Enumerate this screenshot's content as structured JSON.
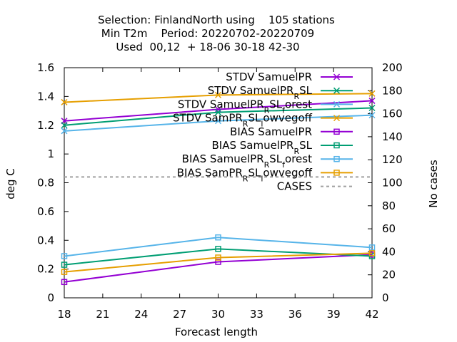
{
  "title_lines": [
    "Selection: FinlandNorth using    105 stations",
    "Min T2m    Period: 20220702-20220709",
    "Used  00,12  + 18-06 30-18 42-30"
  ],
  "chart_data": {
    "type": "line",
    "xlabel": "Forecast length",
    "ylabel": "deg C",
    "y2label": "No cases",
    "xlim": [
      18,
      42
    ],
    "ylim": [
      0,
      1.6
    ],
    "y2lim": [
      0,
      200
    ],
    "xticks": [
      "18",
      "21",
      "24",
      "27",
      "30",
      "33",
      "36",
      "39",
      "42"
    ],
    "yticks": [
      "0",
      "0.2",
      "0.4",
      "0.6",
      "0.8",
      "1",
      "1.2",
      "1.4",
      "1.6"
    ],
    "y2ticks": [
      "0",
      "20",
      "40",
      "60",
      "80",
      "100",
      "120",
      "140",
      "160",
      "180",
      "200"
    ],
    "x": [
      18,
      30,
      42
    ],
    "legend_position": "top-right",
    "series": [
      {
        "label_main": "STDV SamuelPR",
        "label_sub": "",
        "label_tail": "",
        "color": "#9400d3",
        "marker": "x",
        "axis": "y1",
        "dash": false,
        "values": [
          1.23,
          1.31,
          1.37
        ]
      },
      {
        "label_main": "STDV SamuelPR",
        "label_sub": "R",
        "label_tail": "SL",
        "color": "#009e73",
        "marker": "x",
        "axis": "y1",
        "dash": false,
        "values": [
          1.2,
          1.29,
          1.32
        ]
      },
      {
        "label_main": "STDV SamuelPR",
        "label_sub": "R",
        "label_tail": "SL",
        "label_sub2": "f",
        "label_tail2": "orest",
        "color": "#56b4e9",
        "marker": "x",
        "axis": "y1",
        "dash": false,
        "values": [
          1.16,
          1.23,
          1.27
        ]
      },
      {
        "label_main": "STDV SamPR",
        "label_sub": "R",
        "label_tail": "SL",
        "label_sub2": "l",
        "label_tail2": "owvegoff",
        "color": "#e69f00",
        "marker": "x",
        "axis": "y1",
        "dash": false,
        "values": [
          1.36,
          1.41,
          1.42
        ]
      },
      {
        "label_main": "BIAS SamuelPR",
        "label_sub": "",
        "label_tail": "",
        "color": "#9400d3",
        "marker": "box",
        "axis": "y1",
        "dash": false,
        "values": [
          0.11,
          0.25,
          0.3
        ]
      },
      {
        "label_main": "BIAS SamuelPR",
        "label_sub": "R",
        "label_tail": "SL",
        "color": "#009e73",
        "marker": "box",
        "axis": "y1",
        "dash": false,
        "values": [
          0.23,
          0.34,
          0.29
        ]
      },
      {
        "label_main": "BIAS SamuelPR",
        "label_sub": "R",
        "label_tail": "SL",
        "label_sub2": "f",
        "label_tail2": "orest",
        "color": "#56b4e9",
        "marker": "box",
        "axis": "y1",
        "dash": false,
        "values": [
          0.29,
          0.42,
          0.35
        ]
      },
      {
        "label_main": "BIAS SamPR",
        "label_sub": "R",
        "label_tail": "SL",
        "label_sub2": "l",
        "label_tail2": "owvegoff",
        "color": "#e69f00",
        "marker": "box",
        "axis": "y1",
        "dash": false,
        "values": [
          0.18,
          0.28,
          0.31
        ]
      },
      {
        "label_main": "CASES",
        "label_sub": "",
        "label_tail": "",
        "color": "#a0a0a0",
        "marker": "none",
        "axis": "y2",
        "dash": true,
        "values": [
          105,
          105,
          105
        ]
      }
    ]
  }
}
